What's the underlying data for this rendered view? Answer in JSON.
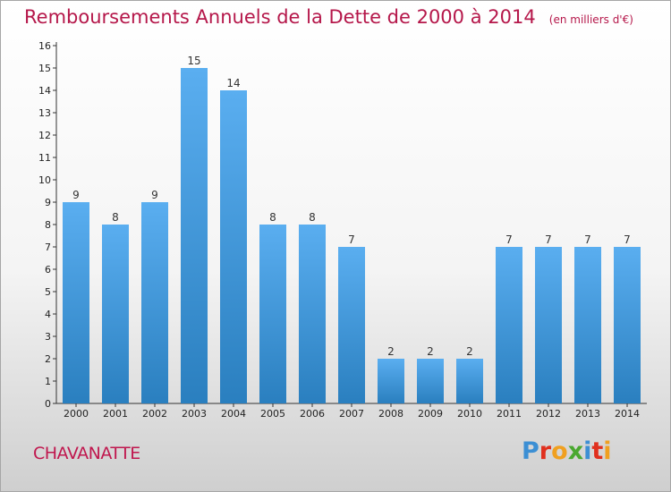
{
  "chart_data": {
    "type": "bar",
    "title": "Remboursements Annuels de la Dette de 2000 à 2014",
    "subtitle": "(en milliers d'€)",
    "categories": [
      "2000",
      "2001",
      "2002",
      "2003",
      "2004",
      "2005",
      "2006",
      "2007",
      "2008",
      "2009",
      "2010",
      "2011",
      "2012",
      "2013",
      "2014"
    ],
    "values": [
      9,
      8,
      9,
      15,
      14,
      8,
      8,
      7,
      2,
      2,
      2,
      7,
      7,
      7,
      7
    ],
    "ylim": [
      0,
      16
    ],
    "yticks": [
      0,
      1,
      2,
      3,
      4,
      5,
      6,
      7,
      8,
      9,
      10,
      11,
      12,
      13,
      14,
      15,
      16
    ],
    "xlabel": "",
    "ylabel": "",
    "grid": false,
    "bar_color_top": "#5aaef0",
    "bar_color_bottom": "#2a7fbf"
  },
  "footer": {
    "commune": "CHAVANATTE",
    "brand_letters": [
      {
        "ch": "P",
        "color": "#3c8fd4"
      },
      {
        "ch": "r",
        "color": "#e0301e"
      },
      {
        "ch": "o",
        "color": "#f0a020"
      },
      {
        "ch": "x",
        "color": "#4aa830"
      },
      {
        "ch": "i",
        "color": "#3c8fd4"
      },
      {
        "ch": "t",
        "color": "#e0301e"
      },
      {
        "ch": "i",
        "color": "#f0a020"
      }
    ]
  },
  "colors": {
    "title": "#b5174a",
    "commune": "#c0174e"
  }
}
